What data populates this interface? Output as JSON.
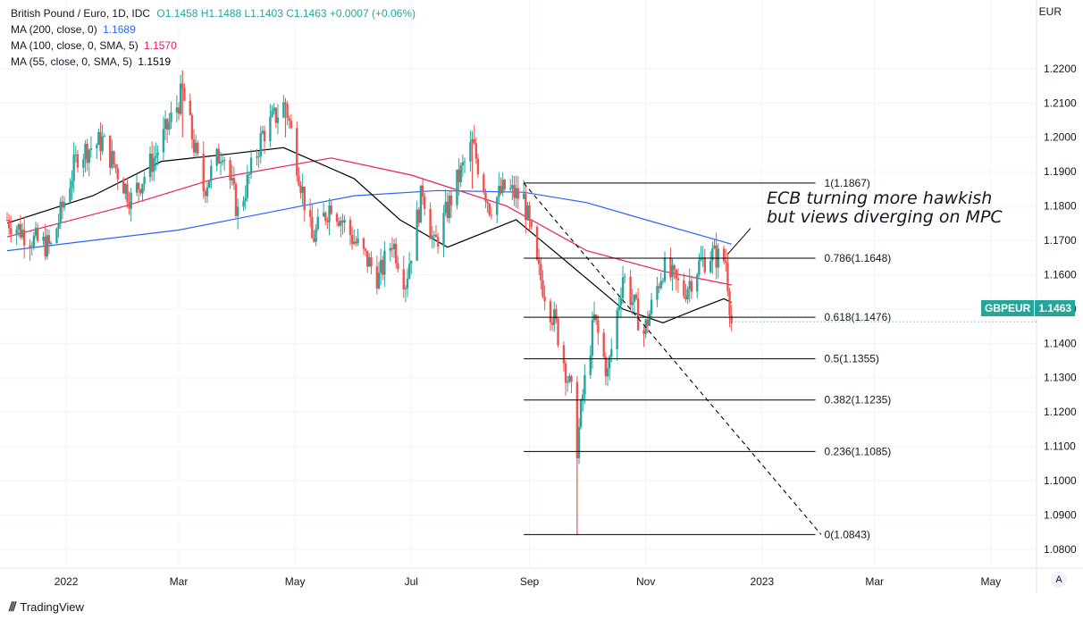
{
  "legend": {
    "title": "British Pound / Euro, 1D, IDC",
    "ohlc": "O1.1458 H1.1488 L1.1403 C1.1463 +0.0007 (+0.06%)",
    "ma200_label": "MA (200, close, 0)",
    "ma200_value": "1.1689",
    "ma100_label": "MA (100, close, 0, SMA, 5)",
    "ma100_value": "1.1570",
    "ma55_label": "MA (55, close, 0, SMA, 5)",
    "ma55_value": "1.1519"
  },
  "currency": "EUR",
  "annotation": {
    "line1": "ECB turning more hawkish",
    "line2": "but views diverging on MPC"
  },
  "price_tag": {
    "symbol": "GBPEUR",
    "price": "1.1463"
  },
  "auto_button": "A",
  "footer": {
    "logo": "⫻",
    "brand": "TradingView"
  },
  "colors": {
    "up": "#26a69a",
    "down": "#ef5350",
    "ma200": "#2962ff",
    "ma100": "#e91e63",
    "ma55": "#000000",
    "grid": "#f0f3fa"
  },
  "chart_data": {
    "type": "candlestick",
    "symbol": "GBPEUR",
    "timeframe": "1D",
    "ylim": [
      1.075,
      1.23
    ],
    "y_ticks": [
      "1.0800",
      "1.0900",
      "1.1000",
      "1.1100",
      "1.1200",
      "1.1300",
      "1.1400",
      "1.1500",
      "1.1600",
      "1.1700",
      "1.1800",
      "1.1900",
      "1.2000",
      "1.2100",
      "1.2200"
    ],
    "x_ticks": [
      {
        "label": "2022",
        "date": "2022-01-01"
      },
      {
        "label": "Mar",
        "date": "2022-03-01"
      },
      {
        "label": "May",
        "date": "2022-05-01"
      },
      {
        "label": "Jul",
        "date": "2022-07-01"
      },
      {
        "label": "Sep",
        "date": "2022-09-01"
      },
      {
        "label": "Nov",
        "date": "2022-11-01"
      },
      {
        "label": "2023",
        "date": "2023-01-01"
      },
      {
        "label": "Mar",
        "date": "2023-03-01"
      },
      {
        "label": "May",
        "date": "2023-05-01"
      }
    ],
    "x_range": [
      "2021-12-01",
      "2023-05-25"
    ],
    "price_path": [
      [
        "2021-12-01",
        1.176
      ],
      [
        "2021-12-15",
        1.17
      ],
      [
        "2021-12-24",
        1.168
      ],
      [
        "2022-01-07",
        1.195
      ],
      [
        "2022-01-20",
        1.199
      ],
      [
        "2022-02-04",
        1.182
      ],
      [
        "2022-02-17",
        1.195
      ],
      [
        "2022-03-03",
        1.213
      ],
      [
        "2022-03-14",
        1.185
      ],
      [
        "2022-03-24",
        1.197
      ],
      [
        "2022-04-01",
        1.178
      ],
      [
        "2022-04-14",
        1.201
      ],
      [
        "2022-04-26",
        1.21
      ],
      [
        "2022-05-10",
        1.17
      ],
      [
        "2022-05-20",
        1.181
      ],
      [
        "2022-06-01",
        1.17
      ],
      [
        "2022-06-14",
        1.159
      ],
      [
        "2022-06-21",
        1.17
      ],
      [
        "2022-06-28",
        1.158
      ],
      [
        "2022-07-07",
        1.185
      ],
      [
        "2022-07-13",
        1.168
      ],
      [
        "2022-07-25",
        1.187
      ],
      [
        "2022-08-02",
        1.198
      ],
      [
        "2022-08-11",
        1.18
      ],
      [
        "2022-08-19",
        1.185
      ],
      [
        "2022-08-29",
        1.182
      ],
      [
        "2022-09-05",
        1.162
      ],
      [
        "2022-09-15",
        1.145
      ],
      [
        "2022-09-23",
        1.125
      ],
      [
        "2022-09-26",
        1.11
      ],
      [
        "2022-09-29",
        1.125
      ],
      [
        "2022-10-05",
        1.147
      ],
      [
        "2022-10-12",
        1.131
      ],
      [
        "2022-10-20",
        1.16
      ],
      [
        "2022-10-31",
        1.143
      ],
      [
        "2022-11-10",
        1.162
      ],
      [
        "2022-11-21",
        1.155
      ],
      [
        "2022-11-29",
        1.163
      ],
      [
        "2022-12-05",
        1.166
      ],
      [
        "2022-12-13",
        1.164
      ],
      [
        "2022-12-16",
        1.146
      ]
    ],
    "wicks": [
      {
        "date": "2022-09-26",
        "low": 1.0843,
        "high": 1.11
      },
      {
        "date": "2022-03-03",
        "low": 1.2,
        "high": 1.2195
      },
      {
        "date": "2022-04-26",
        "low": 1.2,
        "high": 1.2115
      },
      {
        "date": "2022-08-02",
        "low": 1.185,
        "high": 1.199
      }
    ],
    "series": [
      {
        "name": "MA (200, close, 0)",
        "last": 1.1689,
        "points": [
          [
            "2021-12-01",
            1.167
          ],
          [
            "2022-03-01",
            1.173
          ],
          [
            "2022-06-01",
            1.183
          ],
          [
            "2022-07-15",
            1.1845
          ],
          [
            "2022-08-29",
            1.184
          ],
          [
            "2022-10-01",
            1.181
          ],
          [
            "2022-11-01",
            1.176
          ],
          [
            "2022-12-16",
            1.1689
          ]
        ]
      },
      {
        "name": "MA (100, close, 0, SMA, 5)",
        "last": 1.157,
        "points": [
          [
            "2021-12-01",
            1.171
          ],
          [
            "2022-02-01",
            1.18
          ],
          [
            "2022-03-20",
            1.188
          ],
          [
            "2022-05-20",
            1.194
          ],
          [
            "2022-07-01",
            1.189
          ],
          [
            "2022-08-20",
            1.18
          ],
          [
            "2022-10-01",
            1.167
          ],
          [
            "2022-11-10",
            1.161
          ],
          [
            "2022-12-16",
            1.157
          ]
        ]
      },
      {
        "name": "MA (55, close, 0, SMA, 5)",
        "last": 1.1519,
        "points": [
          [
            "2021-12-01",
            1.175
          ],
          [
            "2022-01-15",
            1.183
          ],
          [
            "2022-02-20",
            1.193
          ],
          [
            "2022-03-25",
            1.195
          ],
          [
            "2022-04-25",
            1.197
          ],
          [
            "2022-06-01",
            1.188
          ],
          [
            "2022-06-25",
            1.176
          ],
          [
            "2022-07-20",
            1.168
          ],
          [
            "2022-08-25",
            1.176
          ],
          [
            "2022-09-20",
            1.164
          ],
          [
            "2022-10-20",
            1.15
          ],
          [
            "2022-11-10",
            1.146
          ],
          [
            "2022-11-28",
            1.15
          ],
          [
            "2022-12-12",
            1.153
          ],
          [
            "2022-12-16",
            1.1519
          ]
        ]
      }
    ],
    "fib_levels": [
      {
        "label": "1(1.1867)",
        "value": 1.1867
      },
      {
        "label": "0.786(1.1648)",
        "value": 1.1648
      },
      {
        "label": "0.618(1.1476)",
        "value": 1.1476
      },
      {
        "label": "0.5(1.1355)",
        "value": 1.1355
      },
      {
        "label": "0.382(1.1235)",
        "value": 1.1235
      },
      {
        "label": "0.236(1.1085)",
        "value": 1.1085
      },
      {
        "label": "0(1.0843)",
        "value": 1.0843
      }
    ],
    "fib_range": [
      "2022-08-29",
      "2023-01-29"
    ],
    "trend_line": [
      [
        "2022-08-29",
        1.1867
      ],
      [
        "2023-02-01",
        1.0843
      ]
    ],
    "annotation_arrow": [
      [
        "2022-12-14",
        1.166
      ],
      [
        "2022-12-26",
        1.1735
      ]
    ],
    "last_price": 1.1463
  }
}
